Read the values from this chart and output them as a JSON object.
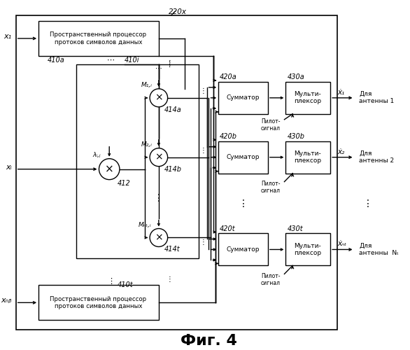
{
  "title": "Фиг. 4",
  "background": "#ffffff",
  "label_220x": "220x",
  "label_410a": "410a",
  "label_410i": "410i",
  "label_410t": "410t",
  "label_412": "412",
  "label_414a": "414a",
  "label_414b": "414b",
  "label_414t": "414t",
  "label_420a": "420a",
  "label_420b": "420b",
  "label_420t": "420t",
  "label_430a": "430a",
  "label_430b": "430b",
  "label_430t": "430t",
  "label_lambda": "λᵢ,ⱼ",
  "label_M1": "M₁,ᵢ",
  "label_M2": "M₂,ᵢ",
  "label_MNT": "Mₙₜ,ᵢ",
  "text_prost": "Пространственный процессор\nпротоков символов данных",
  "text_summ": "Сумматор",
  "text_multi": "Мульти-\nплексор",
  "text_pilot": "Пилот-\nсигнал",
  "text_ant1": "Для\nантенны 1",
  "text_ant2": "Для\nантенны 2",
  "text_antNT": "Для\nантенны  Nₜ",
  "x1_label": "x₁",
  "xj_label": "xᵢ",
  "xNb_label": "xₙᵦ",
  "x1hat_label": "ẋ₁",
  "x2hat_label": "ẋ₂",
  "xNThat_label": "ẋₙₜ",
  "dots_h": "⋯",
  "dots_v": "⋮"
}
